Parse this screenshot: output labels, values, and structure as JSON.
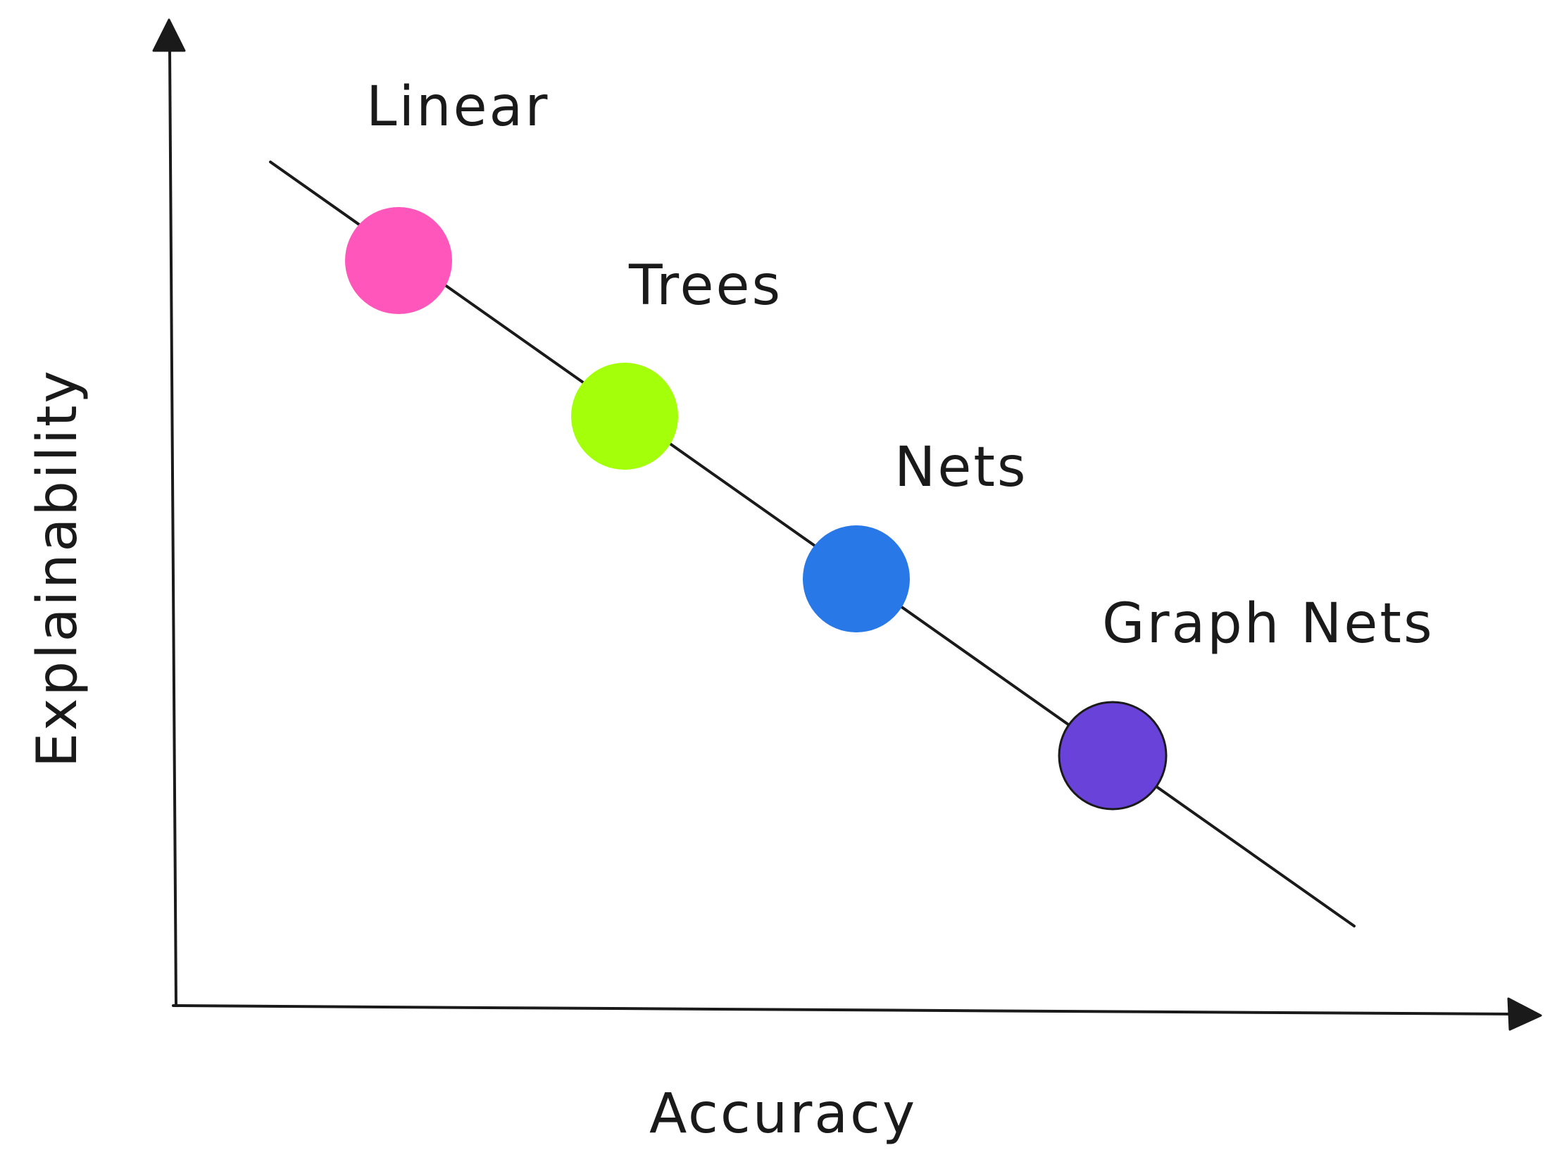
{
  "axes": {
    "x_label": "Accuracy",
    "y_label": "Explainability"
  },
  "nodes": [
    {
      "label": "Linear",
      "color": "#ff56bb"
    },
    {
      "label": "Trees",
      "color": "#a4ff0a"
    },
    {
      "label": "Nets",
      "color": "#2878e8"
    },
    {
      "label": "Graph Nets",
      "color": "#6942da"
    }
  ]
}
